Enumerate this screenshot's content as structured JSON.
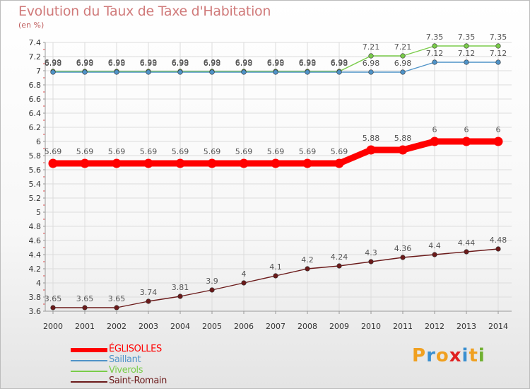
{
  "header": {
    "title": "Evolution du Taux de Taxe d'Habitation",
    "unit": "(en %)"
  },
  "logo": {
    "letters": [
      "P",
      "r",
      "o",
      "x",
      "i",
      "t",
      "i"
    ],
    "colors": [
      "#f0a020",
      "#3a8fd0",
      "#f0a020",
      "#e02020",
      "#3a8fd0",
      "#f0a020",
      "#70b030"
    ]
  },
  "chart_data": {
    "type": "line",
    "x": [
      "2000",
      "2001",
      "2002",
      "2003",
      "2004",
      "2005",
      "2006",
      "2007",
      "2008",
      "2009",
      "2010",
      "2011",
      "2012",
      "2013",
      "2014"
    ],
    "ylim": [
      3.6,
      7.4
    ],
    "yticks": [
      "3.6",
      "3.8",
      "4",
      "4.2",
      "4.4",
      "4.6",
      "4.8",
      "5",
      "5.2",
      "5.4",
      "5.6",
      "5.8",
      "6",
      "6.2",
      "6.4",
      "6.6",
      "6.8",
      "7",
      "7.2",
      "7.4"
    ],
    "grid": true,
    "series": [
      {
        "name": "ÉGLISOLLES",
        "color": "#ff0000",
        "values": [
          5.69,
          5.69,
          5.69,
          5.69,
          5.69,
          5.69,
          5.69,
          5.69,
          5.69,
          5.69,
          5.88,
          5.88,
          6,
          6,
          6
        ],
        "labels": [
          "5.69",
          "5.69",
          "5.69",
          "5.69",
          "5.69",
          "5.69",
          "5.69",
          "5.69",
          "5.69",
          "5.69",
          "5.88",
          "5.88",
          "6",
          "6",
          "6"
        ]
      },
      {
        "name": "Saillant",
        "color": "#4f93c8",
        "values": [
          6.98,
          6.98,
          6.98,
          6.98,
          6.98,
          6.98,
          6.98,
          6.98,
          6.98,
          6.98,
          6.98,
          6.98,
          7.12,
          7.12,
          7.12
        ],
        "labels": [
          "6.98",
          "6.98",
          "6.98",
          "6.98",
          "6.98",
          "6.98",
          "6.98",
          "6.98",
          "6.98",
          "6.98",
          "6.98",
          "6.98",
          "7.12",
          "7.12",
          "7.12"
        ]
      },
      {
        "name": "Viverols",
        "color": "#7acc4a",
        "values": [
          6.99,
          6.99,
          6.99,
          6.99,
          6.99,
          6.99,
          6.99,
          6.99,
          6.99,
          6.99,
          7.21,
          7.21,
          7.35,
          7.35,
          7.35
        ],
        "labels": [
          "6.99",
          "6.99",
          "6.99",
          "6.99",
          "6.99",
          "6.99",
          "6.99",
          "6.99",
          "6.99",
          "6.99",
          "7.21",
          "7.21",
          "7.35",
          "7.35",
          "7.35"
        ]
      },
      {
        "name": "Saint-Romain",
        "color": "#6b1a1a",
        "values": [
          3.65,
          3.65,
          3.65,
          3.74,
          3.81,
          3.9,
          4,
          4.1,
          4.2,
          4.24,
          4.3,
          4.36,
          4.4,
          4.44,
          4.48
        ],
        "labels": [
          "3.65",
          "3.65",
          "3.65",
          "3.74",
          "3.81",
          "3.9",
          "4",
          "4.1",
          "4.2",
          "4.24",
          "4.3",
          "4.36",
          "4.4",
          "4.44",
          "4.48"
        ]
      }
    ]
  }
}
